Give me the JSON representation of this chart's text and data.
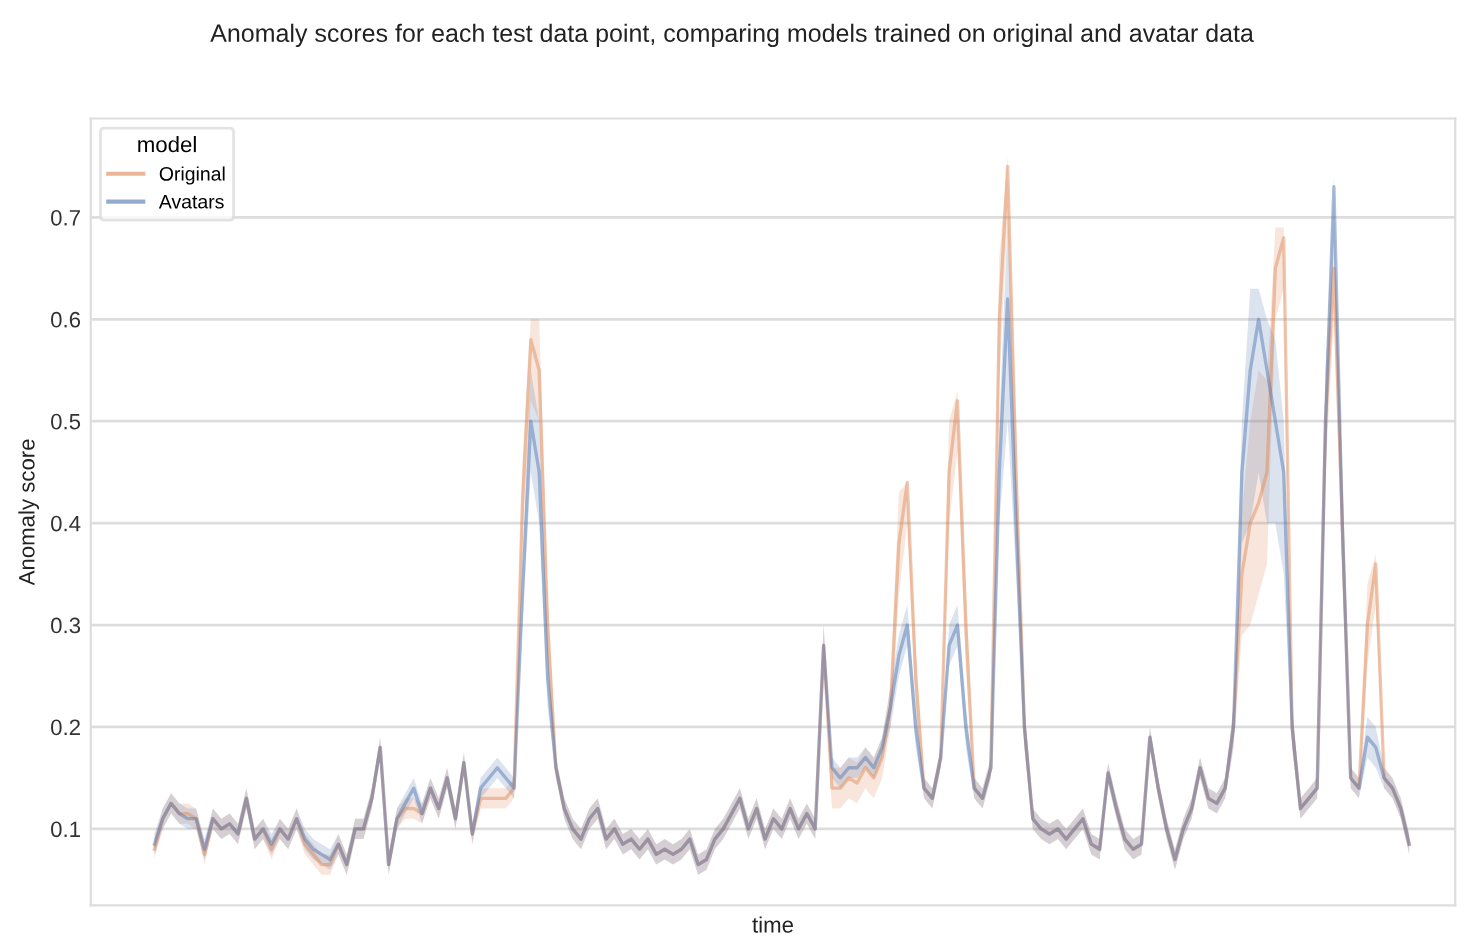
{
  "chart_data": {
    "type": "line",
    "title": "Anomaly scores for each test data point, comparing models trained on original and avatar data",
    "xlabel": "time",
    "ylabel": "Anomaly score",
    "legend_title": "model",
    "categories": [
      null,
      null,
      null,
      null,
      null,
      null,
      null,
      null,
      null,
      null,
      null,
      null,
      null,
      null,
      null,
      null,
      null,
      null,
      null,
      null,
      null,
      null,
      null,
      null,
      null,
      null,
      null,
      null,
      null,
      null,
      null,
      null,
      null,
      null,
      null,
      null,
      null,
      null,
      null,
      null,
      null,
      null,
      null,
      null,
      null,
      null,
      null,
      null,
      null,
      null,
      null,
      null,
      null,
      null,
      null,
      null,
      null,
      null,
      null,
      null,
      null,
      null,
      null,
      null,
      null,
      null,
      null,
      null,
      null,
      null,
      null,
      null,
      null,
      null,
      null,
      null,
      null,
      null,
      null,
      null,
      null,
      null,
      null,
      null,
      null,
      null,
      null,
      null,
      null,
      null,
      null,
      null,
      null,
      null,
      null,
      null,
      null,
      null,
      null,
      null,
      null,
      null,
      null,
      null,
      null,
      null,
      null,
      null,
      null,
      null,
      null,
      null,
      null,
      null,
      null,
      null,
      null,
      null,
      null,
      null,
      null,
      null,
      null,
      null,
      null,
      null,
      null,
      null,
      null,
      null,
      null,
      null,
      null,
      null,
      null,
      null,
      null,
      null,
      null,
      null,
      null,
      null,
      null,
      null,
      null,
      null,
      null,
      null,
      null,
      null,
      null
    ],
    "series": [
      {
        "name": "Original",
        "color": "#dd8452",
        "values": [
          0.08,
          0.11,
          0.125,
          0.115,
          0.115,
          0.11,
          0.075,
          0.11,
          0.1,
          0.105,
          0.095,
          0.13,
          0.09,
          0.1,
          0.08,
          0.1,
          0.09,
          0.11,
          0.085,
          0.075,
          0.065,
          0.065,
          0.085,
          0.065,
          0.1,
          0.1,
          0.13,
          0.18,
          0.065,
          0.11,
          0.12,
          0.12,
          0.115,
          0.14,
          0.12,
          0.15,
          0.11,
          0.165,
          0.095,
          0.13,
          0.13,
          0.13,
          0.13,
          0.14,
          0.42,
          0.58,
          0.55,
          0.3,
          0.16,
          0.12,
          0.1,
          0.09,
          0.11,
          0.12,
          0.09,
          0.1,
          0.085,
          0.09,
          0.08,
          0.09,
          0.075,
          0.08,
          0.075,
          0.08,
          0.09,
          0.065,
          0.07,
          0.09,
          0.1,
          0.115,
          0.13,
          0.1,
          0.12,
          0.09,
          0.11,
          0.1,
          0.12,
          0.1,
          0.115,
          0.1,
          0.28,
          0.14,
          0.14,
          0.15,
          0.145,
          0.16,
          0.15,
          0.17,
          0.22,
          0.38,
          0.44,
          0.25,
          0.14,
          0.13,
          0.17,
          0.45,
          0.52,
          0.3,
          0.14,
          0.13,
          0.16,
          0.6,
          0.75,
          0.45,
          0.2,
          0.11,
          0.1,
          0.095,
          0.1,
          0.09,
          0.1,
          0.11,
          0.085,
          0.08,
          0.155,
          0.12,
          0.09,
          0.08,
          0.085,
          0.19,
          0.14,
          0.1,
          0.07,
          0.1,
          0.12,
          0.16,
          0.13,
          0.125,
          0.14,
          0.2,
          0.35,
          0.4,
          0.42,
          0.45,
          0.65,
          0.68,
          0.2,
          0.12,
          0.13,
          0.14,
          0.5,
          0.65,
          0.4,
          0.15,
          0.14,
          0.3,
          0.36,
          0.15,
          0.14,
          0.12,
          0.085
        ],
        "lower": [
          0.07,
          0.1,
          0.115,
          0.105,
          0.105,
          0.1,
          0.065,
          0.1,
          0.09,
          0.095,
          0.085,
          0.12,
          0.08,
          0.09,
          0.07,
          0.09,
          0.08,
          0.1,
          0.075,
          0.065,
          0.055,
          0.055,
          0.075,
          0.055,
          0.09,
          0.09,
          0.12,
          0.17,
          0.055,
          0.1,
          0.11,
          0.11,
          0.105,
          0.13,
          0.11,
          0.14,
          0.1,
          0.155,
          0.085,
          0.12,
          0.12,
          0.12,
          0.12,
          0.13,
          0.38,
          0.52,
          0.5,
          0.26,
          0.15,
          0.11,
          0.09,
          0.08,
          0.1,
          0.11,
          0.08,
          0.09,
          0.075,
          0.08,
          0.07,
          0.08,
          0.065,
          0.07,
          0.065,
          0.07,
          0.08,
          0.055,
          0.06,
          0.08,
          0.09,
          0.105,
          0.12,
          0.09,
          0.11,
          0.08,
          0.1,
          0.09,
          0.11,
          0.09,
          0.105,
          0.09,
          0.26,
          0.12,
          0.12,
          0.13,
          0.125,
          0.14,
          0.13,
          0.15,
          0.2,
          0.33,
          0.4,
          0.22,
          0.13,
          0.12,
          0.16,
          0.4,
          0.47,
          0.26,
          0.13,
          0.12,
          0.15,
          0.54,
          0.7,
          0.4,
          0.18,
          0.1,
          0.09,
          0.085,
          0.09,
          0.08,
          0.09,
          0.1,
          0.075,
          0.07,
          0.145,
          0.11,
          0.08,
          0.07,
          0.075,
          0.18,
          0.13,
          0.09,
          0.06,
          0.09,
          0.11,
          0.15,
          0.12,
          0.115,
          0.13,
          0.18,
          0.29,
          0.3,
          0.33,
          0.36,
          0.6,
          0.63,
          0.18,
          0.11,
          0.12,
          0.13,
          0.45,
          0.6,
          0.35,
          0.14,
          0.13,
          0.26,
          0.32,
          0.14,
          0.13,
          0.11,
          0.075
        ],
        "upper": [
          0.09,
          0.12,
          0.135,
          0.125,
          0.125,
          0.12,
          0.085,
          0.12,
          0.11,
          0.115,
          0.105,
          0.14,
          0.1,
          0.11,
          0.09,
          0.11,
          0.1,
          0.12,
          0.095,
          0.085,
          0.075,
          0.075,
          0.095,
          0.075,
          0.11,
          0.11,
          0.14,
          0.19,
          0.075,
          0.12,
          0.13,
          0.13,
          0.125,
          0.15,
          0.13,
          0.16,
          0.12,
          0.175,
          0.105,
          0.14,
          0.14,
          0.14,
          0.14,
          0.15,
          0.46,
          0.6,
          0.6,
          0.34,
          0.17,
          0.13,
          0.11,
          0.1,
          0.12,
          0.13,
          0.1,
          0.11,
          0.095,
          0.1,
          0.09,
          0.1,
          0.085,
          0.09,
          0.085,
          0.09,
          0.1,
          0.075,
          0.08,
          0.1,
          0.11,
          0.125,
          0.14,
          0.11,
          0.13,
          0.1,
          0.12,
          0.11,
          0.13,
          0.11,
          0.125,
          0.11,
          0.3,
          0.16,
          0.16,
          0.17,
          0.165,
          0.18,
          0.17,
          0.19,
          0.24,
          0.43,
          0.44,
          0.28,
          0.15,
          0.14,
          0.18,
          0.5,
          0.53,
          0.34,
          0.15,
          0.14,
          0.17,
          0.66,
          0.76,
          0.5,
          0.22,
          0.12,
          0.11,
          0.105,
          0.11,
          0.1,
          0.11,
          0.12,
          0.095,
          0.09,
          0.165,
          0.13,
          0.1,
          0.09,
          0.095,
          0.2,
          0.15,
          0.11,
          0.08,
          0.11,
          0.13,
          0.17,
          0.14,
          0.135,
          0.15,
          0.22,
          0.41,
          0.5,
          0.55,
          0.54,
          0.69,
          0.69,
          0.22,
          0.13,
          0.14,
          0.15,
          0.55,
          0.68,
          0.45,
          0.16,
          0.15,
          0.34,
          0.37,
          0.16,
          0.15,
          0.13,
          0.095
        ]
      },
      {
        "name": "Avatars",
        "color": "#4c72b0",
        "values": [
          0.085,
          0.11,
          0.125,
          0.115,
          0.11,
          0.11,
          0.08,
          0.11,
          0.1,
          0.105,
          0.095,
          0.13,
          0.09,
          0.1,
          0.085,
          0.1,
          0.09,
          0.11,
          0.09,
          0.08,
          0.075,
          0.07,
          0.085,
          0.065,
          0.1,
          0.1,
          0.13,
          0.18,
          0.065,
          0.11,
          0.125,
          0.14,
          0.115,
          0.14,
          0.12,
          0.15,
          0.11,
          0.165,
          0.095,
          0.14,
          0.15,
          0.16,
          0.15,
          0.14,
          0.33,
          0.5,
          0.45,
          0.25,
          0.16,
          0.12,
          0.1,
          0.09,
          0.11,
          0.12,
          0.09,
          0.1,
          0.085,
          0.09,
          0.08,
          0.09,
          0.075,
          0.08,
          0.075,
          0.08,
          0.09,
          0.065,
          0.07,
          0.09,
          0.1,
          0.115,
          0.13,
          0.1,
          0.12,
          0.09,
          0.11,
          0.1,
          0.12,
          0.1,
          0.115,
          0.1,
          0.28,
          0.16,
          0.15,
          0.16,
          0.16,
          0.17,
          0.16,
          0.18,
          0.22,
          0.27,
          0.3,
          0.2,
          0.14,
          0.13,
          0.17,
          0.28,
          0.3,
          0.2,
          0.14,
          0.13,
          0.16,
          0.45,
          0.62,
          0.4,
          0.2,
          0.11,
          0.1,
          0.095,
          0.1,
          0.09,
          0.1,
          0.11,
          0.085,
          0.08,
          0.155,
          0.12,
          0.09,
          0.08,
          0.085,
          0.19,
          0.14,
          0.1,
          0.07,
          0.1,
          0.12,
          0.16,
          0.13,
          0.125,
          0.14,
          0.2,
          0.45,
          0.55,
          0.6,
          0.55,
          0.5,
          0.45,
          0.2,
          0.12,
          0.13,
          0.14,
          0.5,
          0.73,
          0.4,
          0.15,
          0.14,
          0.19,
          0.18,
          0.15,
          0.14,
          0.12,
          0.085
        ],
        "lower": [
          0.075,
          0.1,
          0.115,
          0.105,
          0.1,
          0.1,
          0.07,
          0.1,
          0.09,
          0.095,
          0.085,
          0.12,
          0.08,
          0.09,
          0.075,
          0.09,
          0.08,
          0.1,
          0.08,
          0.07,
          0.065,
          0.06,
          0.075,
          0.055,
          0.09,
          0.09,
          0.12,
          0.17,
          0.055,
          0.1,
          0.115,
          0.13,
          0.105,
          0.13,
          0.11,
          0.14,
          0.1,
          0.155,
          0.085,
          0.13,
          0.14,
          0.15,
          0.14,
          0.13,
          0.3,
          0.45,
          0.4,
          0.22,
          0.15,
          0.11,
          0.09,
          0.08,
          0.1,
          0.11,
          0.08,
          0.09,
          0.075,
          0.08,
          0.07,
          0.08,
          0.065,
          0.07,
          0.065,
          0.07,
          0.08,
          0.055,
          0.06,
          0.08,
          0.09,
          0.105,
          0.12,
          0.09,
          0.11,
          0.08,
          0.1,
          0.09,
          0.11,
          0.09,
          0.105,
          0.09,
          0.26,
          0.15,
          0.14,
          0.15,
          0.15,
          0.16,
          0.15,
          0.17,
          0.2,
          0.25,
          0.28,
          0.18,
          0.13,
          0.12,
          0.16,
          0.26,
          0.28,
          0.18,
          0.13,
          0.12,
          0.15,
          0.4,
          0.5,
          0.35,
          0.18,
          0.1,
          0.09,
          0.085,
          0.09,
          0.08,
          0.09,
          0.1,
          0.075,
          0.07,
          0.145,
          0.11,
          0.08,
          0.07,
          0.075,
          0.18,
          0.13,
          0.09,
          0.06,
          0.09,
          0.11,
          0.15,
          0.12,
          0.115,
          0.13,
          0.18,
          0.38,
          0.4,
          0.45,
          0.4,
          0.4,
          0.35,
          0.18,
          0.11,
          0.12,
          0.13,
          0.45,
          0.68,
          0.35,
          0.14,
          0.13,
          0.17,
          0.16,
          0.14,
          0.13,
          0.11,
          0.075
        ],
        "upper": [
          0.095,
          0.12,
          0.135,
          0.125,
          0.12,
          0.12,
          0.09,
          0.12,
          0.11,
          0.115,
          0.105,
          0.14,
          0.1,
          0.11,
          0.095,
          0.11,
          0.1,
          0.12,
          0.1,
          0.09,
          0.085,
          0.08,
          0.095,
          0.075,
          0.11,
          0.11,
          0.14,
          0.19,
          0.075,
          0.12,
          0.135,
          0.15,
          0.125,
          0.15,
          0.13,
          0.16,
          0.12,
          0.175,
          0.105,
          0.15,
          0.16,
          0.17,
          0.16,
          0.15,
          0.36,
          0.55,
          0.5,
          0.28,
          0.17,
          0.13,
          0.11,
          0.1,
          0.12,
          0.13,
          0.1,
          0.11,
          0.095,
          0.1,
          0.09,
          0.1,
          0.085,
          0.09,
          0.085,
          0.09,
          0.1,
          0.075,
          0.08,
          0.1,
          0.11,
          0.125,
          0.14,
          0.11,
          0.13,
          0.1,
          0.12,
          0.11,
          0.13,
          0.11,
          0.125,
          0.11,
          0.3,
          0.17,
          0.16,
          0.17,
          0.17,
          0.18,
          0.17,
          0.19,
          0.24,
          0.29,
          0.32,
          0.22,
          0.15,
          0.14,
          0.18,
          0.3,
          0.32,
          0.22,
          0.15,
          0.14,
          0.17,
          0.5,
          0.7,
          0.45,
          0.22,
          0.12,
          0.11,
          0.105,
          0.11,
          0.1,
          0.11,
          0.12,
          0.095,
          0.09,
          0.165,
          0.13,
          0.1,
          0.09,
          0.095,
          0.2,
          0.15,
          0.11,
          0.08,
          0.11,
          0.13,
          0.17,
          0.14,
          0.135,
          0.15,
          0.22,
          0.5,
          0.63,
          0.63,
          0.6,
          0.58,
          0.5,
          0.22,
          0.13,
          0.14,
          0.15,
          0.55,
          0.74,
          0.45,
          0.16,
          0.15,
          0.21,
          0.2,
          0.16,
          0.15,
          0.13,
          0.095
        ]
      }
    ],
    "ylim": [
      0.025,
      0.797
    ],
    "yticks": [
      0.1,
      0.2,
      0.3,
      0.4,
      0.5,
      0.6,
      0.7
    ],
    "grid": "y",
    "legend": "top left",
    "tick_labels": "y",
    "marker": "none",
    "line_style": "solid"
  }
}
